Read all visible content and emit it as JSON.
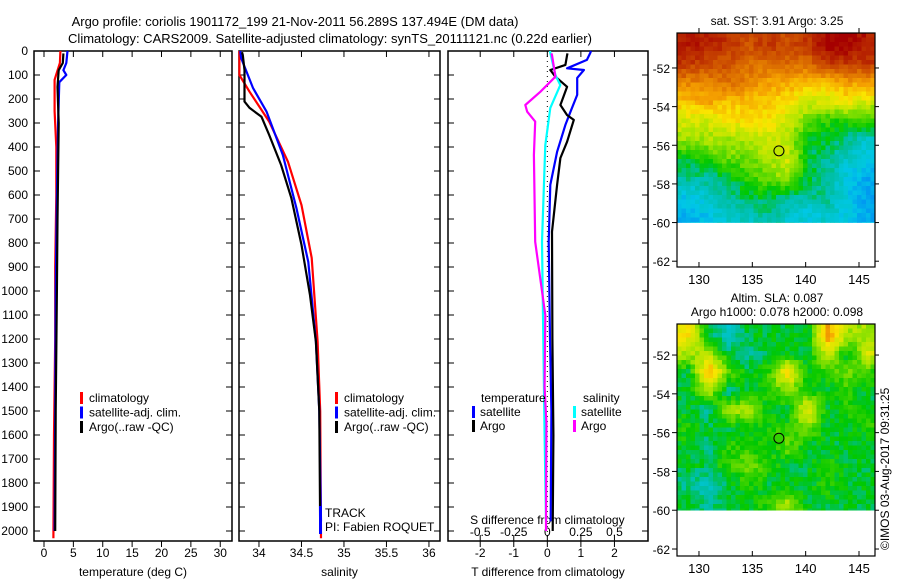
{
  "title": {
    "line1": "Argo profile: coriolis 1901172_199 21-Nov-2011 56.289S 137.494E (DM data)",
    "line2": "Climatology: CARS2009. Satellite-adjusted climatology: synTS_20111121.nc (0.22d earlier)"
  },
  "colors": {
    "climatology": "#ff0000",
    "satellite": "#0000ff",
    "argo": "#000000",
    "sal_satellite": "#00ffff",
    "sal_argo": "#ff00ff"
  },
  "chart_data": [
    {
      "type": "line",
      "id": "temperature",
      "xlabel": "temperature (deg C)",
      "ylabel": "",
      "xlim": [
        -1.7,
        32
      ],
      "ylim": [
        2042,
        0
      ],
      "xticks": [
        "0",
        "5",
        "10",
        "15",
        "20",
        "25",
        "30"
      ],
      "yticks": [
        "0",
        "100",
        "200",
        "300",
        "400",
        "500",
        "600",
        "700",
        "800",
        "900",
        "1000",
        "1100",
        "1200",
        "1300",
        "1400",
        "1500",
        "1600",
        "1700",
        "1800",
        "1900",
        "2000"
      ],
      "legend": [
        "climatology",
        "satellite-adj. clim.",
        "Argo(..raw -QC)"
      ],
      "series": [
        {
          "name": "climatology",
          "color": "#ff0000",
          "points": [
            [
              0,
              2.8
            ],
            [
              50,
              2.7
            ],
            [
              120,
              1.8
            ],
            [
              250,
              1.8
            ],
            [
              400,
              2.1
            ],
            [
              600,
              2.1
            ],
            [
              900,
              1.9
            ],
            [
              1200,
              1.9
            ],
            [
              1600,
              1.7
            ],
            [
              2030,
              1.6
            ]
          ]
        },
        {
          "name": "satellite-adj. clim.",
          "color": "#0000ff",
          "points": [
            [
              0,
              4.0
            ],
            [
              50,
              3.8
            ],
            [
              80,
              3.3
            ],
            [
              100,
              3.8
            ],
            [
              130,
              2.6
            ],
            [
              300,
              2.4
            ],
            [
              600,
              2.2
            ],
            [
              1000,
              2.0
            ],
            [
              1500,
              1.9
            ],
            [
              2000,
              1.8
            ]
          ]
        },
        {
          "name": "Argo(..raw -QC)",
          "color": "#000000",
          "points": [
            [
              10,
              3.3
            ],
            [
              50,
              3.2
            ],
            [
              80,
              2.5
            ],
            [
              150,
              2.3
            ],
            [
              300,
              2.5
            ],
            [
              500,
              2.4
            ],
            [
              700,
              2.3
            ],
            [
              1000,
              2.2
            ],
            [
              1500,
              2.0
            ],
            [
              2000,
              1.9
            ]
          ]
        }
      ]
    },
    {
      "type": "line",
      "id": "salinity",
      "xlabel": "salinity",
      "xlim": [
        33.765,
        36.13
      ],
      "ylim": [
        2042,
        0
      ],
      "xticks": [
        "34",
        "34.5",
        "35",
        "35.5",
        "36"
      ],
      "legend": [
        "climatology",
        "satellite-adj. clim.",
        "Argo(..raw -QC)"
      ],
      "annotations": [
        "TRACK",
        "PI: Fabien ROQUET"
      ],
      "series": [
        {
          "name": "climatology",
          "color": "#ff0000",
          "points": [
            [
              0,
              33.77
            ],
            [
              100,
              33.77
            ],
            [
              170,
              33.89
            ],
            [
              294,
              34.12
            ],
            [
              461,
              34.34
            ],
            [
              642,
              34.5
            ],
            [
              862,
              34.62
            ],
            [
              1211,
              34.69
            ],
            [
              1500,
              34.72
            ],
            [
              2030,
              34.73
            ]
          ]
        },
        {
          "name": "satellite-adj. clim.",
          "color": "#0000ff",
          "points": [
            [
              0,
              33.78
            ],
            [
              29,
              33.79
            ],
            [
              154,
              33.93
            ],
            [
              253,
              34.09
            ],
            [
              433,
              34.28
            ],
            [
              654,
              34.44
            ],
            [
              879,
              34.58
            ],
            [
              1211,
              34.67
            ],
            [
              1500,
              34.71
            ],
            [
              1960,
              34.73
            ]
          ]
        },
        {
          "name": "Argo(..raw -QC)",
          "color": "#000000",
          "points": [
            [
              5,
              33.8
            ],
            [
              17,
              33.81
            ],
            [
              79,
              33.83
            ],
            [
              211,
              33.83
            ],
            [
              237,
              33.89
            ],
            [
              274,
              34.03
            ],
            [
              350,
              34.12
            ],
            [
              475,
              34.26
            ],
            [
              612,
              34.38
            ],
            [
              808,
              34.5
            ],
            [
              1017,
              34.6
            ],
            [
              1211,
              34.67
            ],
            [
              1500,
              34.71
            ],
            [
              2000,
              34.72
            ]
          ]
        }
      ]
    },
    {
      "type": "line",
      "id": "difference",
      "xlabel": "T difference from climatology",
      "x2label": "S difference from climatology",
      "xlim": [
        -2.96,
        3.0
      ],
      "ylim": [
        2042,
        0
      ],
      "xticks": [
        "-2",
        "-1",
        "0",
        "1",
        "2"
      ],
      "x2ticks": [
        "-0.5",
        "-0.25",
        "0",
        "0.25",
        "0.5"
      ],
      "legend": {
        "temperature_title": "temperature",
        "salinity_title": "salinity",
        "t_sat": "satellite",
        "t_argo": "Argo",
        "s_sat": "satellite",
        "s_argo": "Argo"
      },
      "series": [
        {
          "name": "T satellite",
          "var": "T",
          "color": "#0000ff",
          "points": [
            [
              0,
              1.3
            ],
            [
              8,
              1.28
            ],
            [
              37,
              1.18
            ],
            [
              72,
              0.59
            ],
            [
              79,
              1.09
            ],
            [
              112,
              0.89
            ],
            [
              183,
              0.89
            ],
            [
              253,
              0.69
            ],
            [
              308,
              0.54
            ],
            [
              420,
              0.29
            ],
            [
              558,
              0.09
            ],
            [
              795,
              0.04
            ],
            [
              1200,
              0.08
            ],
            [
              1500,
              0.12
            ],
            [
              1960,
              0.1
            ]
          ]
        },
        {
          "name": "T Argo",
          "var": "T",
          "color": "#000000",
          "points": [
            [
              10,
              0.6
            ],
            [
              17,
              0.59
            ],
            [
              58,
              0.54
            ],
            [
              79,
              0.09
            ],
            [
              107,
              0.24
            ],
            [
              149,
              0.59
            ],
            [
              225,
              0.39
            ],
            [
              267,
              0.59
            ],
            [
              287,
              0.79
            ],
            [
              378,
              0.59
            ],
            [
              446,
              0.39
            ],
            [
              558,
              0.29
            ],
            [
              753,
              0.14
            ],
            [
              1200,
              0.15
            ],
            [
              1600,
              0.18
            ],
            [
              2000,
              0.16
            ]
          ]
        },
        {
          "name": "S satellite",
          "var": "S",
          "color": "#00ffff",
          "points": [
            [
              0,
              0.02
            ],
            [
              8,
              0.022
            ],
            [
              100,
              0.06
            ],
            [
              142,
              0.097
            ],
            [
              237,
              0.022
            ],
            [
              392,
              -0.015
            ],
            [
              795,
              -0.04
            ],
            [
              1200,
              -0.03
            ],
            [
              1600,
              -0.02
            ],
            [
              1960,
              -0.01
            ]
          ]
        },
        {
          "name": "S Argo",
          "var": "S",
          "color": "#ff00ff",
          "points": [
            [
              10,
              0.03
            ],
            [
              17,
              0.035
            ],
            [
              107,
              0.06
            ],
            [
              170,
              -0.052
            ],
            [
              225,
              -0.164
            ],
            [
              253,
              -0.15
            ],
            [
              294,
              -0.09
            ],
            [
              433,
              -0.1
            ],
            [
              795,
              -0.09
            ],
            [
              1100,
              -0.015
            ],
            [
              1400,
              -0.02
            ],
            [
              1550,
              -0.007
            ],
            [
              2000,
              -0.01
            ]
          ]
        }
      ]
    },
    {
      "type": "heatmap",
      "id": "sst-map",
      "title": "sat. SST: 3.91  Argo: 3.25",
      "xlim": [
        127.94,
        146.5
      ],
      "ylim": [
        -62.3,
        -50.19
      ],
      "data_lat_range": [
        -60,
        -50.19
      ],
      "xticks": [
        "130",
        "135",
        "140",
        "145"
      ],
      "yticks": [
        "-52",
        "-54",
        "-56",
        "-58",
        "-60",
        "-62"
      ],
      "marker": {
        "lon": 137.494,
        "lat": -56.289
      },
      "grid": [
        [
          0.95,
          0.95,
          0.9,
          0.85,
          0.9,
          0.85,
          0.9,
          1,
          1,
          0.95
        ],
        [
          0.9,
          0.85,
          0.85,
          0.8,
          0.8,
          0.8,
          0.8,
          0.9,
          0.9,
          0.9
        ],
        [
          0.75,
          0.75,
          0.8,
          0.75,
          0.7,
          0.7,
          0.65,
          0.65,
          0.7,
          0.7
        ],
        [
          0.65,
          0.7,
          0.65,
          0.65,
          0.65,
          0.6,
          0.55,
          0.55,
          0.6,
          0.55
        ],
        [
          0.55,
          0.55,
          0.6,
          0.6,
          0.6,
          0.55,
          0.45,
          0.4,
          0.4,
          0.4
        ],
        [
          0.5,
          0.5,
          0.5,
          0.5,
          0.55,
          0.5,
          0.35,
          0.35,
          0.3,
          0.25
        ],
        [
          0.35,
          0.4,
          0.45,
          0.45,
          0.5,
          0.55,
          0.35,
          0.3,
          0.25,
          0.2
        ],
        [
          0.3,
          0.3,
          0.35,
          0.4,
          0.45,
          0.5,
          0.35,
          0.3,
          0.2,
          0.15
        ],
        [
          0.2,
          0.25,
          0.3,
          0.35,
          0.35,
          0.3,
          0.3,
          0.3,
          0.2,
          0.12
        ],
        [
          0.15,
          0.2,
          0.25,
          0.25,
          0.3,
          0.25,
          0.2,
          0.25,
          0.2,
          0.15
        ]
      ]
    },
    {
      "type": "heatmap",
      "id": "sla-map",
      "title": "Altim. SLA: 0.087",
      "subtitle": "Argo h1000: 0.078 h2000: 0.098",
      "xlim": [
        127.94,
        146.5
      ],
      "ylim": [
        -62.36,
        -50.4
      ],
      "data_lat_range": [
        -60,
        -50.4
      ],
      "xticks": [
        "130",
        "135",
        "140",
        "145"
      ],
      "yticks": [
        "-52",
        "-54",
        "-56",
        "-58",
        "-60",
        "-62"
      ],
      "marker": {
        "lon": 137.494,
        "lat": -56.289
      },
      "grid": [
        [
          0.6,
          0.35,
          0.25,
          0.35,
          0.35,
          0.35,
          0.35,
          0.7,
          0.5,
          0.5
        ],
        [
          0.5,
          0.5,
          0.35,
          0.3,
          0.35,
          0.35,
          0.35,
          0.55,
          0.35,
          0.55
        ],
        [
          0.35,
          0.7,
          0.45,
          0.35,
          0.4,
          0.65,
          0.35,
          0.4,
          0.45,
          0.4
        ],
        [
          0.35,
          0.5,
          0.3,
          0.35,
          0.4,
          0.45,
          0.4,
          0.35,
          0.4,
          0.35
        ],
        [
          0.35,
          0.3,
          0.5,
          0.5,
          0.35,
          0.35,
          0.6,
          0.35,
          0.4,
          0.35
        ],
        [
          0.4,
          0.35,
          0.35,
          0.35,
          0.4,
          0.4,
          0.45,
          0.35,
          0.35,
          0.4
        ],
        [
          0.35,
          0.3,
          0.4,
          0.4,
          0.35,
          0.45,
          0.35,
          0.35,
          0.35,
          0.35
        ],
        [
          0.35,
          0.35,
          0.4,
          0.45,
          0.4,
          0.35,
          0.35,
          0.4,
          0.35,
          0.35
        ],
        [
          0.3,
          0.25,
          0.35,
          0.4,
          0.35,
          0.35,
          0.35,
          0.4,
          0.35,
          0.35
        ],
        [
          0.35,
          0.3,
          0.35,
          0.35,
          0.4,
          0.5,
          0.35,
          0.35,
          0.35,
          0.35
        ]
      ]
    }
  ],
  "copyright": "©IMOS 03-Aug-2017 09:31:25"
}
